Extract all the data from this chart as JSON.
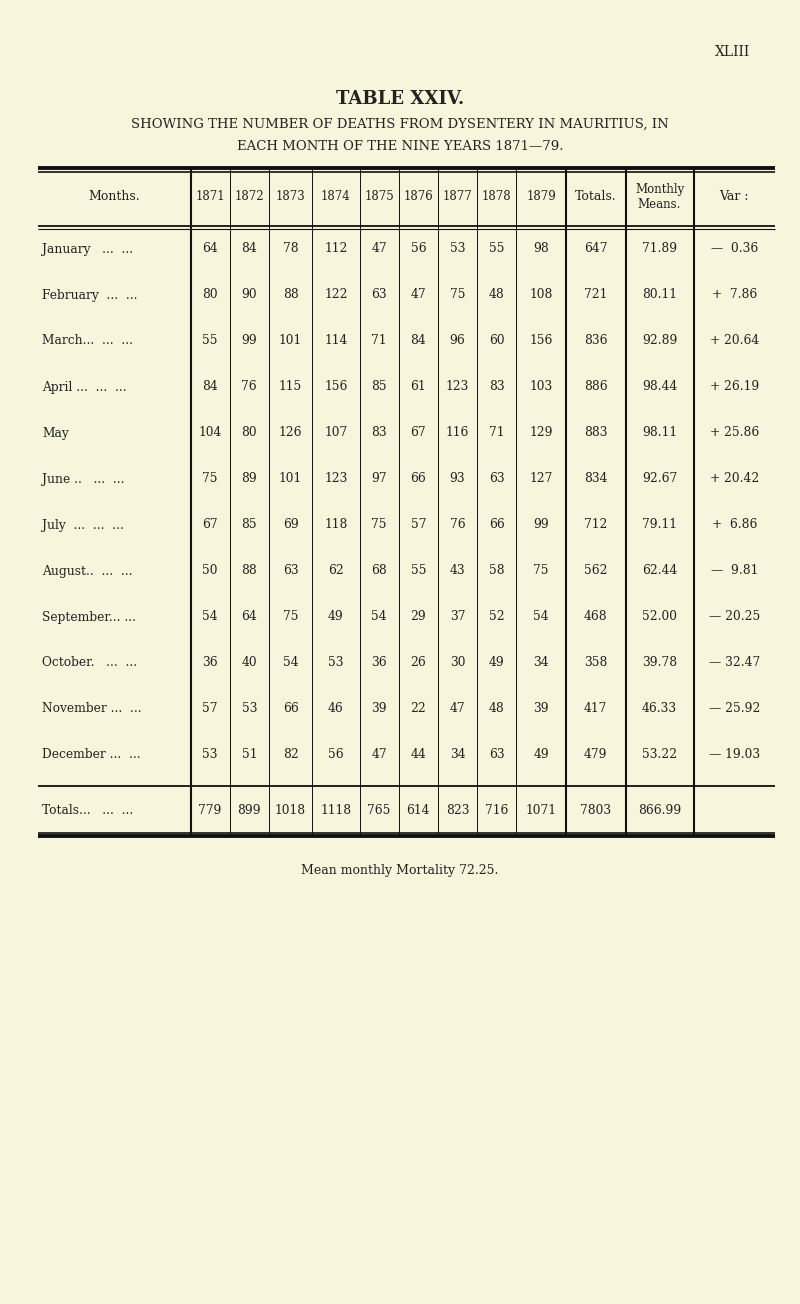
{
  "page_label": "XLIII",
  "title": "TABLE XXIV.",
  "subtitle1": "SHOWING THE NUMBER OF DEATHS FROM DYSENTERY IN MAURITIUS, IN",
  "subtitle2": "EACH MONTH OF THE NINE YEARS 1871—79.",
  "footer": "Mean monthly Mortality 72.25.",
  "bg_color": "#f7f6dc",
  "text_color": "#222222",
  "line_color": "#111111",
  "months_col": [
    "January   ...  ...",
    "February  ...  ...",
    "March...  ...  ...",
    "April ...  ...  ...",
    "May",
    "June ..   ...  ...",
    "July  ...  ...  ...",
    "August..  ...  ...",
    "September... ...",
    "October.   ...  ...",
    "November ...  ...",
    "December ...  ..."
  ],
  "totals_label": "Totals...   ...  ...",
  "years": [
    "1871",
    "1872",
    "1873",
    "1874",
    "1875",
    "1876",
    "1877",
    "1878",
    "1879"
  ],
  "data": [
    [
      64,
      84,
      78,
      112,
      47,
      56,
      53,
      55,
      98,
      647,
      "71.89",
      "—  0.36"
    ],
    [
      80,
      90,
      88,
      122,
      63,
      47,
      75,
      48,
      108,
      721,
      "80.11",
      "+  7.86"
    ],
    [
      55,
      99,
      101,
      114,
      71,
      84,
      96,
      60,
      156,
      836,
      "92.89",
      "+ 20.64"
    ],
    [
      84,
      76,
      115,
      156,
      85,
      61,
      123,
      83,
      103,
      886,
      "98.44",
      "+ 26.19"
    ],
    [
      104,
      80,
      126,
      107,
      83,
      67,
      116,
      71,
      129,
      883,
      "98.11",
      "+ 25.86"
    ],
    [
      75,
      89,
      101,
      123,
      97,
      66,
      93,
      63,
      127,
      834,
      "92.67",
      "+ 20.42"
    ],
    [
      67,
      85,
      69,
      118,
      75,
      57,
      76,
      66,
      99,
      712,
      "79.11",
      "+  6.86"
    ],
    [
      50,
      88,
      63,
      62,
      68,
      55,
      43,
      58,
      75,
      562,
      "62.44",
      "—  9.81"
    ],
    [
      54,
      64,
      75,
      49,
      54,
      29,
      37,
      52,
      54,
      468,
      "52.00",
      "— 20.25"
    ],
    [
      36,
      40,
      54,
      53,
      36,
      26,
      30,
      49,
      34,
      358,
      "39.78",
      "— 32.47"
    ],
    [
      57,
      53,
      66,
      46,
      39,
      22,
      47,
      48,
      39,
      417,
      "46.33",
      "— 25.92"
    ],
    [
      53,
      51,
      82,
      56,
      47,
      44,
      34,
      63,
      49,
      479,
      "53.22",
      "— 19.03"
    ],
    [
      779,
      899,
      1018,
      1118,
      765,
      614,
      823,
      716,
      1071,
      7803,
      "866.99",
      ""
    ]
  ]
}
